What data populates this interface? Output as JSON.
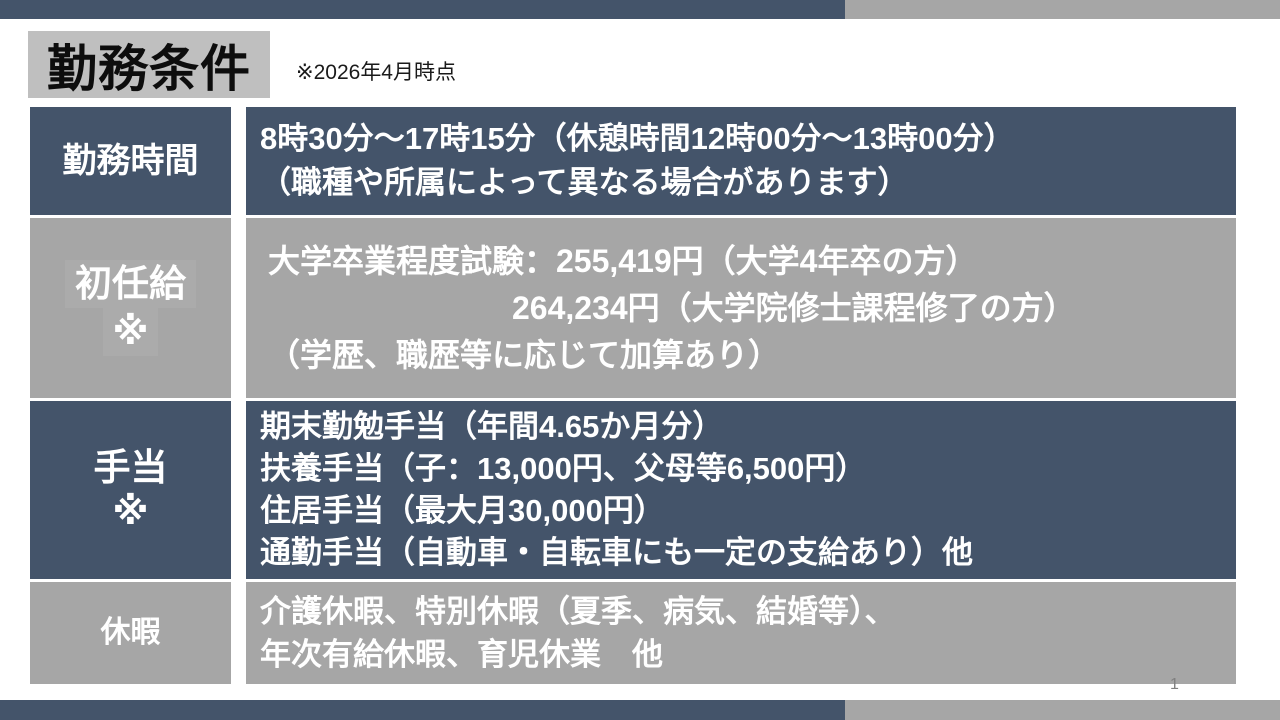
{
  "page": {
    "title": "勤務条件",
    "note": "※2026年4月時点",
    "page_number": "1"
  },
  "colors": {
    "dark_slate": "#44546A",
    "cell_gray": "#A6A6A6",
    "title_bg": "#BFBFBF",
    "text_on_cells": "#FFFFFF"
  },
  "table": {
    "rows": [
      {
        "label": "勤務時間",
        "label_note": "",
        "variant": "dark",
        "lines": [
          "8時30分～17時15分（休憩時間12時00分～13時00分）",
          "（職種や所属によって異なる場合があります）"
        ]
      },
      {
        "label": "初任給",
        "label_note": "※",
        "variant": "gray",
        "lines": [
          "大学卒業程度試験：255,419円（大学4年卒の方）",
          "264,234円（大学院修士課程修了の方）",
          "（学歴、職歴等に応じて加算あり）"
        ]
      },
      {
        "label": "手当",
        "label_note": "※",
        "variant": "dark",
        "lines": [
          "期末勤勉手当（年間4.65か月分）",
          "扶養手当（子：13,000円、父母等6,500円）",
          "住居手当（最大月30,000円）",
          "通勤手当（自動車・自転車にも一定の支給あり）他"
        ]
      },
      {
        "label": "休暇",
        "label_note": "",
        "variant": "gray",
        "lines": [
          "介護休暇、特別休暇（夏季、病気、結婚等）、",
          "年次有給休暇、育児休業　他"
        ]
      }
    ]
  }
}
